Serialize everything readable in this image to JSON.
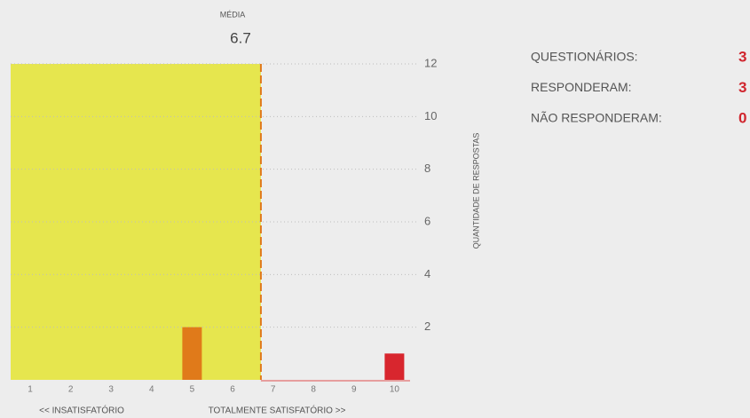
{
  "chart_data": {
    "type": "bar",
    "mean_label": "MÉDIA",
    "mean": 6.7,
    "categories": [
      "1",
      "2",
      "3",
      "4",
      "5",
      "6",
      "7",
      "8",
      "9",
      "10"
    ],
    "values": [
      0,
      0,
      0,
      0,
      2,
      0,
      0,
      0,
      0,
      1
    ],
    "colors": [
      "#e07a1a",
      "#e07a1a",
      "#e07a1a",
      "#e07a1a",
      "#e07a1a",
      "#e07a1a",
      "#d8262e",
      "#d8262e",
      "#d8262e",
      "#d8262e"
    ],
    "ylim": [
      0,
      12
    ],
    "yticks": [
      2,
      4,
      6,
      8,
      10,
      12
    ],
    "grid": true,
    "y_axis_label": "QUANTIDADE DE RESPOSTAS",
    "x_left_label": "<< INSATISFATÓRIO",
    "x_right_label": "TOTALMENTE SATISFATÓRIO >>"
  },
  "stats": [
    {
      "label": "QUESTIONÁRIOS:",
      "value": 3
    },
    {
      "label": "RESPONDERAM:",
      "value": 3
    },
    {
      "label": "NÃO RESPONDERAM:",
      "value": 0
    }
  ]
}
